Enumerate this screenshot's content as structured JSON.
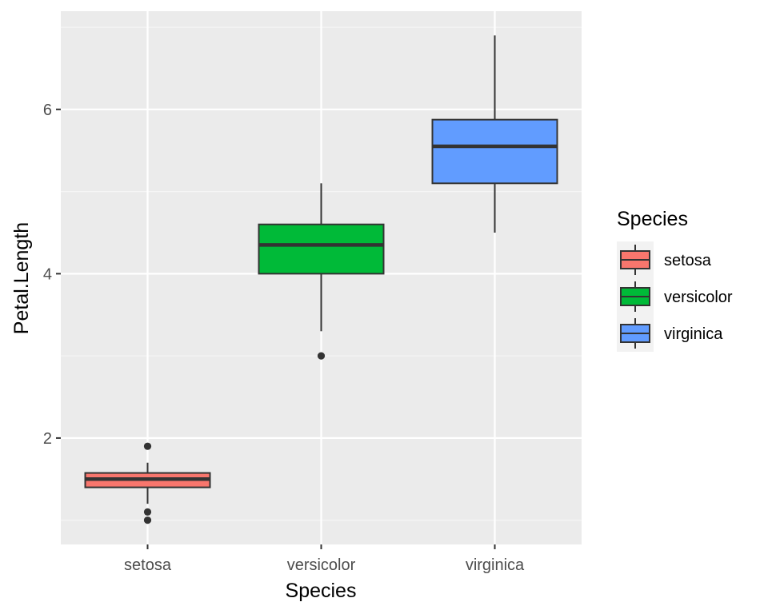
{
  "chart_data": {
    "type": "box",
    "title": "",
    "xlabel": "Species",
    "ylabel": "Petal.Length",
    "categories": [
      "setosa",
      "versicolor",
      "virginica"
    ],
    "ylim": [
      0.705,
      7.195
    ],
    "y_ticks": [
      2,
      4,
      6
    ],
    "y_tick_labels": [
      "2",
      "4",
      "6"
    ],
    "grid": true,
    "legend": {
      "title": "Species",
      "position": "right",
      "entries": [
        "setosa",
        "versicolor",
        "virginica"
      ]
    },
    "series": [
      {
        "name": "setosa",
        "color": "#F8766D",
        "min": 1.2,
        "q1": 1.4,
        "median": 1.5,
        "q3": 1.575,
        "max": 1.7,
        "outliers": [
          1.9,
          1.1,
          1.0
        ]
      },
      {
        "name": "versicolor",
        "color": "#00BA38",
        "min": 3.3,
        "q1": 4.0,
        "median": 4.35,
        "q3": 4.6,
        "max": 5.1,
        "outliers": [
          3.0
        ]
      },
      {
        "name": "virginica",
        "color": "#619CFF",
        "min": 4.5,
        "q1": 5.1,
        "median": 5.55,
        "q3": 5.875,
        "max": 6.9,
        "outliers": []
      }
    ],
    "colors": {
      "panel": "#EBEBEB",
      "grid_major": "#FFFFFF",
      "grid_minor": "#F5F5F5",
      "stroke": "#333333"
    }
  }
}
